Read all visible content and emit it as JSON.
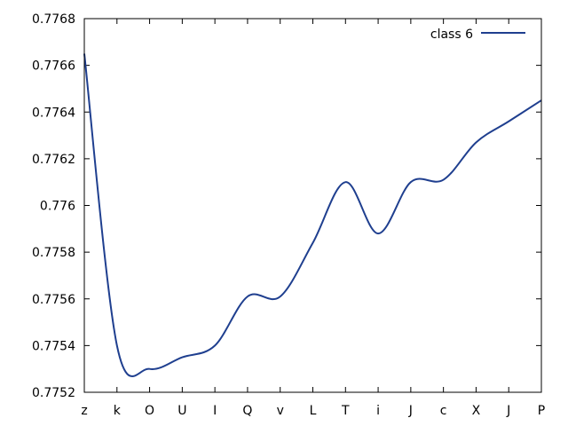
{
  "chart_data": {
    "type": "line",
    "categories": [
      "z",
      "k",
      "O",
      "U",
      "I",
      "Q",
      "v",
      "L",
      "T",
      "i",
      "J",
      "c",
      "X",
      "J",
      "P"
    ],
    "series": [
      {
        "name": "class 6",
        "color": "#1f3f8f",
        "values": [
          0.77665,
          0.7754,
          0.7753,
          0.77535,
          0.7754,
          0.77561,
          0.77561,
          0.77584,
          0.7761,
          0.77588,
          0.7761,
          0.77611,
          0.77627,
          0.77636,
          0.77645
        ]
      }
    ],
    "ylim": [
      0.7752,
      0.7768
    ],
    "yticks": [
      "0.7752",
      "0.7754",
      "0.7756",
      "0.7758",
      "0.776",
      "0.7762",
      "0.7764",
      "0.7766",
      "0.7768"
    ],
    "grid": false,
    "legend_position": "top-right"
  }
}
